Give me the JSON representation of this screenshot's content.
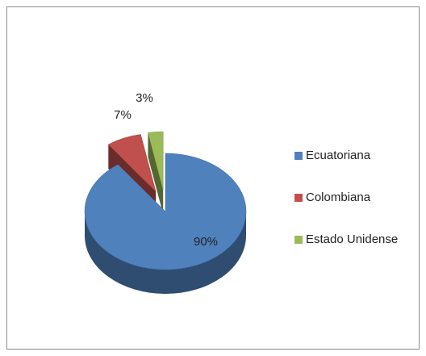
{
  "chart_data": {
    "type": "pie",
    "categories": [
      "Ecuatoriana",
      "Colombiana",
      "Estado Unidense"
    ],
    "values": [
      90,
      7,
      3
    ],
    "value_labels": [
      "90%",
      "7%",
      "3%"
    ],
    "colors": [
      "#4f81bd",
      "#c0504d",
      "#9bbb59"
    ],
    "legend": "right"
  }
}
